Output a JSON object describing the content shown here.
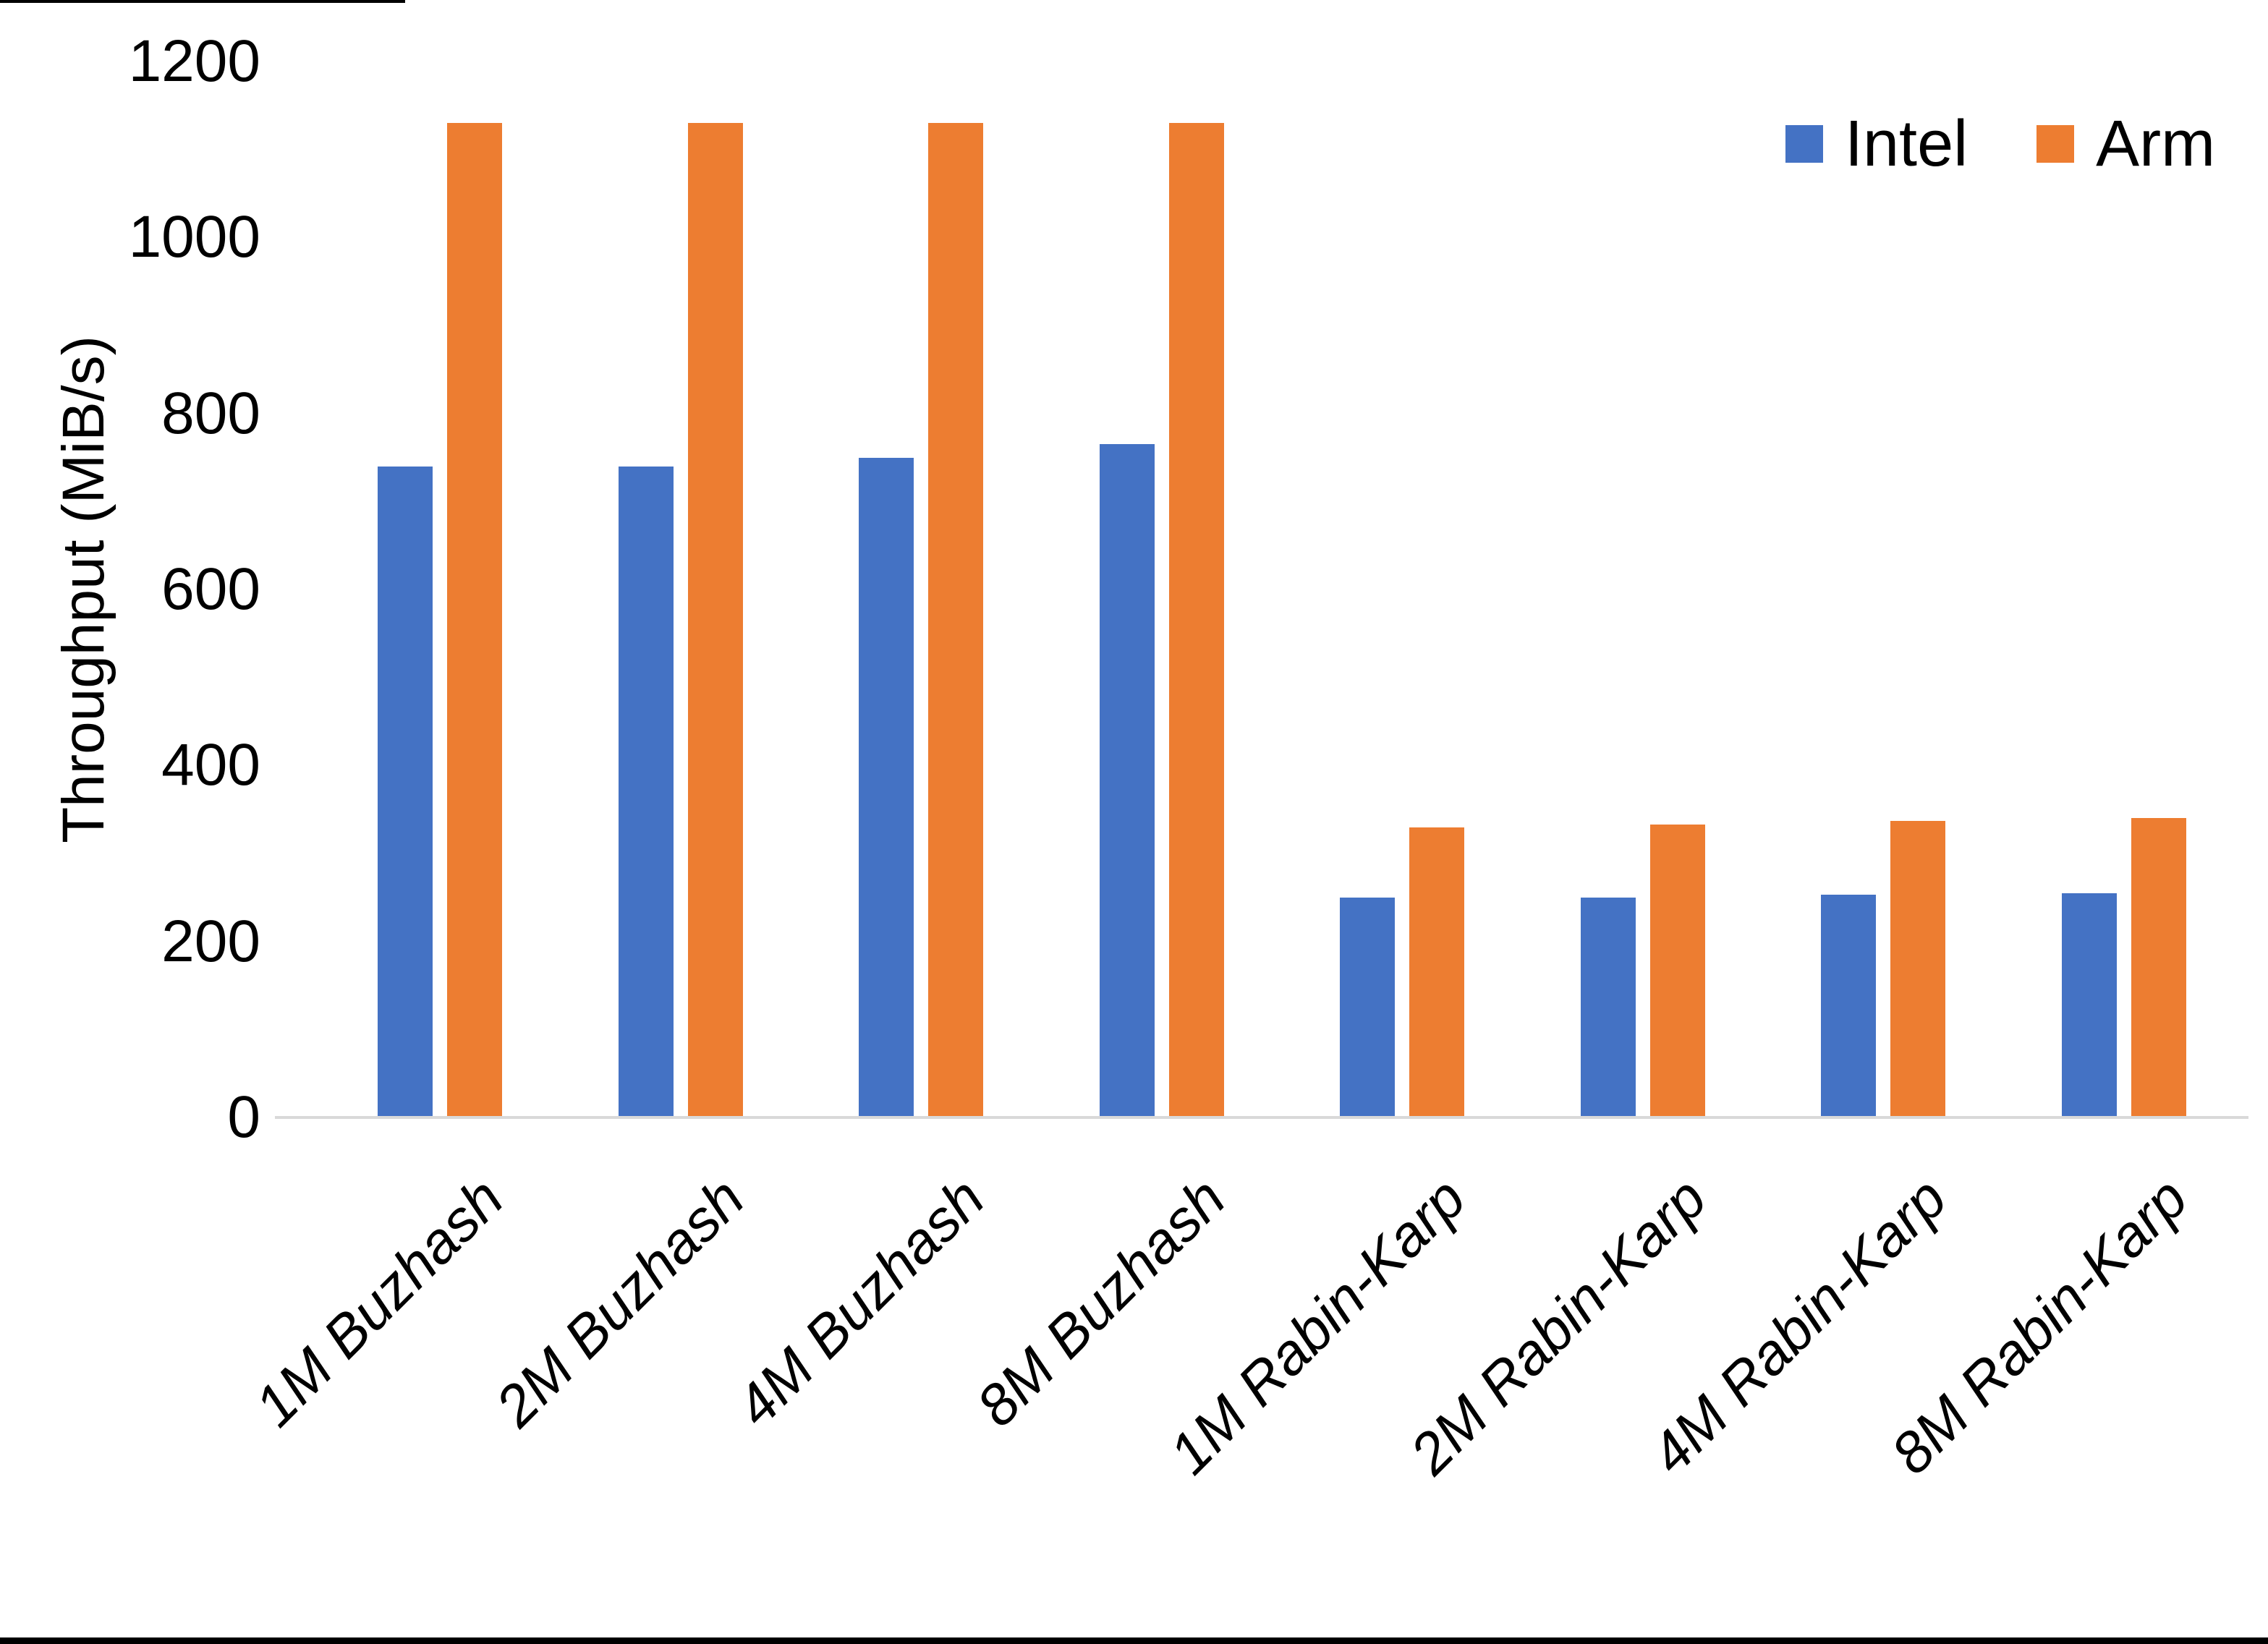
{
  "chart_data": {
    "type": "bar",
    "title": "",
    "xlabel": "",
    "ylabel": "Throughput (MiB/s)",
    "ylim": [
      0,
      1200
    ],
    "yticks": [
      0,
      200,
      400,
      600,
      800,
      1000,
      1200
    ],
    "grid": false,
    "legend_position": "top-right",
    "categories": [
      "1M Buzhash",
      "2M Buzhash",
      "4M Buzhash",
      "8M Buzhash",
      "1M Rabin-Karp",
      "2M Rabin-Karp",
      "4M Rabin-Karp",
      "8M Rabin-Karp"
    ],
    "series": [
      {
        "name": "Intel",
        "color": "#4472C4",
        "values": [
          740,
          740,
          750,
          765,
          250,
          250,
          253,
          255
        ]
      },
      {
        "name": "Arm",
        "color": "#ED7D31",
        "values": [
          1130,
          1130,
          1130,
          1130,
          330,
          333,
          337,
          340
        ]
      }
    ]
  },
  "colors": {
    "axis_line": "#D9D9D9",
    "text": "#000000",
    "background": "#FFFFFF",
    "edge_bar": "#000000"
  }
}
